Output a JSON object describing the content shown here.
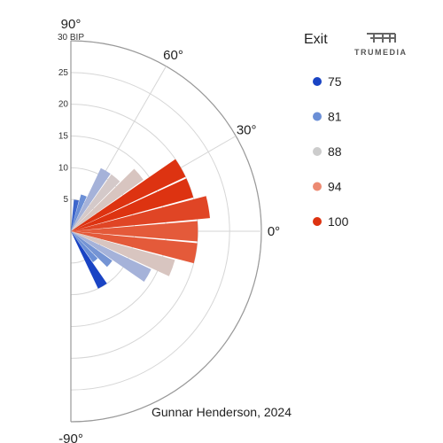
{
  "chart_data": {
    "type": "polar-bar",
    "caption": "Gunnar Henderson, 2024",
    "radial_max": 30,
    "radial_unit": "BIP",
    "radial_ticks": [
      5,
      10,
      15,
      20,
      25,
      30
    ],
    "radial_tick_labels": [
      "5",
      "10",
      "15",
      "20",
      "25",
      "30 BIP"
    ],
    "angle_ticks": [
      90,
      60,
      30,
      0,
      -90
    ],
    "angle_tick_labels": [
      "90°",
      "60°",
      "30°",
      "0°",
      "-90°"
    ],
    "angle_range": [
      -90,
      90
    ],
    "legend": {
      "title": "Exit",
      "position": "top-right",
      "items": [
        {
          "label": "75",
          "color": "#1a44c4"
        },
        {
          "label": "81",
          "color": "#6b8fd6"
        },
        {
          "label": "88",
          "color": "#cccccc"
        },
        {
          "label": "94",
          "color": "#ec8a72"
        },
        {
          "label": "100",
          "color": "#dd3311"
        }
      ]
    },
    "bars": [
      {
        "angle_center": -60,
        "value": 10,
        "exit": 75,
        "color": "#1a44c4"
      },
      {
        "angle_center": -50,
        "value": 6,
        "exit": 81,
        "color": "#6b8fd6"
      },
      {
        "angle_center": -40,
        "value": 8,
        "exit": 81,
        "color": "#7594d4"
      },
      {
        "angle_center": -30,
        "value": 14,
        "exit": 84,
        "color": "#a5b2d9"
      },
      {
        "angle_center": -20,
        "value": 17,
        "exit": 88,
        "color": "#d8c5c0"
      },
      {
        "angle_center": -10,
        "value": 20,
        "exit": 100,
        "color": "#e45a3a"
      },
      {
        "angle_center": 0,
        "value": 20,
        "exit": 100,
        "color": "#e45a3a"
      },
      {
        "angle_center": 10,
        "value": 22,
        "exit": 100,
        "color": "#e04525"
      },
      {
        "angle_center": 20,
        "value": 20,
        "exit": 100,
        "color": "#dd3311"
      },
      {
        "angle_center": 30,
        "value": 20,
        "exit": 100,
        "color": "#dd3311"
      },
      {
        "angle_center": 40,
        "value": 14,
        "exit": 88,
        "color": "#d8c5c0"
      },
      {
        "angle_center": 50,
        "value": 11,
        "exit": 88,
        "color": "#d4c9c9"
      },
      {
        "angle_center": 60,
        "value": 11,
        "exit": 84,
        "color": "#a5b2d9"
      },
      {
        "angle_center": 70,
        "value": 6,
        "exit": 81,
        "color": "#6b8fd6"
      },
      {
        "angle_center": 80,
        "value": 5,
        "exit": 75,
        "color": "#3d66cc"
      }
    ]
  },
  "brand": {
    "name": "TRUMEDIA"
  }
}
